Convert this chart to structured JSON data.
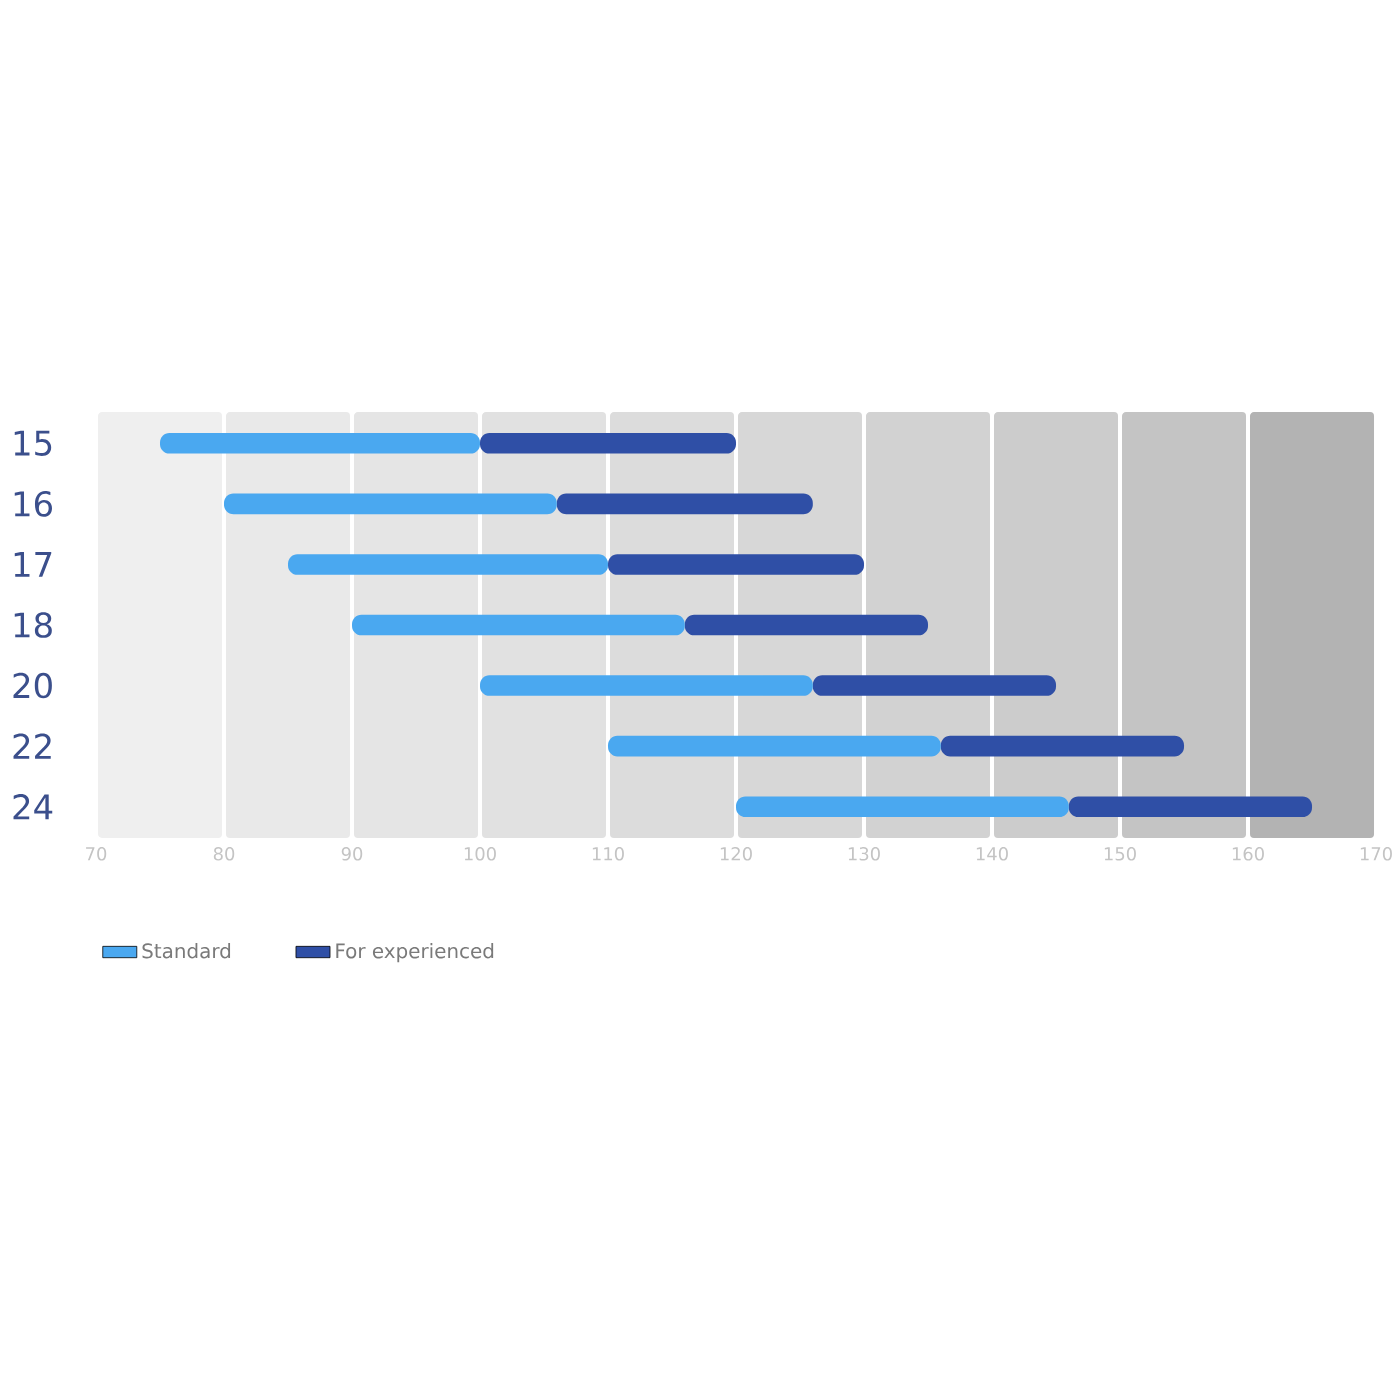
{
  "chart_data": {
    "type": "bar",
    "orientation": "horizontal",
    "categories": [
      "15",
      "16",
      "17",
      "18",
      "20",
      "22",
      "24"
    ],
    "series": [
      {
        "name": "Standard",
        "color": "#4aa8f0",
        "base": [
          75,
          80,
          85,
          90,
          100,
          110,
          120
        ],
        "values": [
          25,
          26,
          25,
          26,
          26,
          26,
          26
        ]
      },
      {
        "name": "For experienced",
        "color": "#2f4fa6",
        "base": [
          100,
          106,
          110,
          116,
          126,
          136,
          146
        ],
        "values": [
          20,
          20,
          20,
          19,
          19,
          19,
          19
        ]
      }
    ],
    "xlim": [
      70,
      170
    ],
    "xticks": [
      70,
      80,
      90,
      100,
      110,
      120,
      130,
      140,
      150,
      160,
      170
    ],
    "bands": [
      {
        "axis": "x",
        "from": 70,
        "to": 80,
        "color": "#efefef"
      },
      {
        "axis": "x",
        "from": 80,
        "to": 90,
        "color": "#e9e9e9"
      },
      {
        "axis": "x",
        "from": 90,
        "to": 100,
        "color": "#e5e5e5"
      },
      {
        "axis": "x",
        "from": 100,
        "to": 110,
        "color": "#e1e1e1"
      },
      {
        "axis": "x",
        "from": 110,
        "to": 120,
        "color": "#dcdcdc"
      },
      {
        "axis": "x",
        "from": 120,
        "to": 130,
        "color": "#d7d7d7"
      },
      {
        "axis": "x",
        "from": 130,
        "to": 140,
        "color": "#d2d2d2"
      },
      {
        "axis": "x",
        "from": 140,
        "to": 150,
        "color": "#cccccc"
      },
      {
        "axis": "x",
        "from": 150,
        "to": 160,
        "color": "#c4c4c4"
      },
      {
        "axis": "x",
        "from": 160,
        "to": 170,
        "color": "#b3b3b3"
      }
    ],
    "grid": false,
    "legend": "bottom left"
  }
}
